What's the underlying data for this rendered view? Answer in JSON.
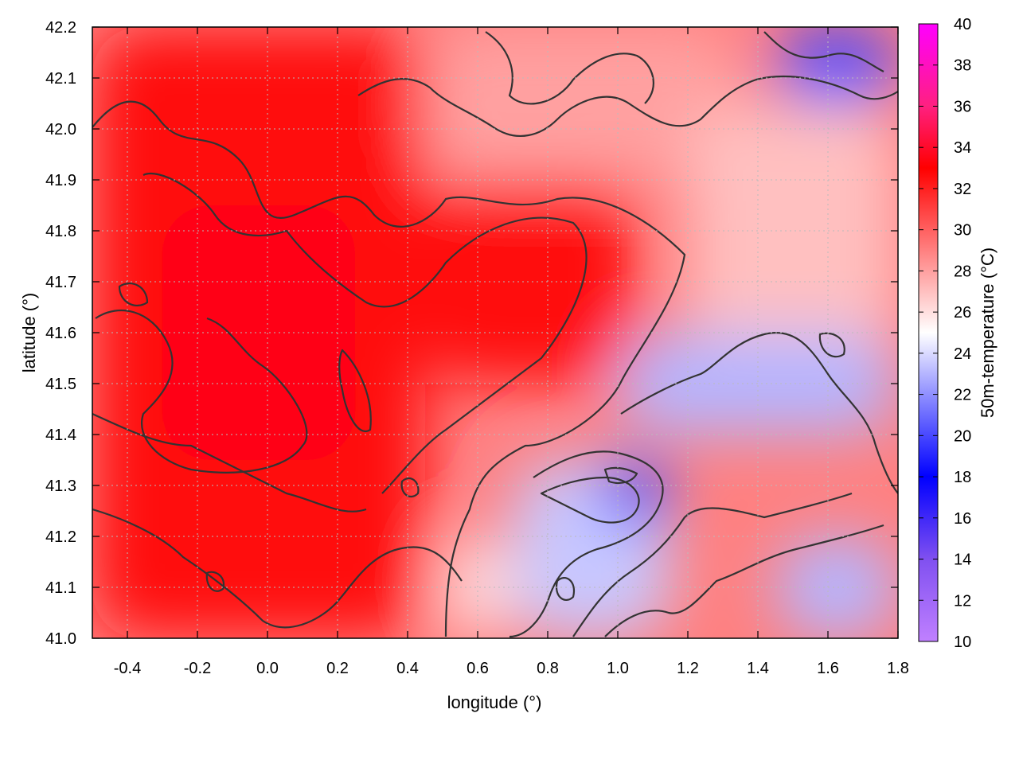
{
  "chart_data": {
    "type": "heatmap",
    "title": "",
    "xlabel": "longitude (°)",
    "ylabel": "latitude (°)",
    "colorbar_label": "50m-temperature (°C)",
    "xlim": [
      -0.5,
      1.8
    ],
    "ylim": [
      41.0,
      42.2
    ],
    "clim": [
      10,
      40
    ],
    "x_ticks": [
      -0.4,
      -0.2,
      0.0,
      0.2,
      0.4,
      0.6,
      0.8,
      1.0,
      1.2,
      1.4,
      1.6,
      1.8
    ],
    "x_tick_labels": [
      "-0.4",
      "-0.2",
      "0.0",
      "0.2",
      "0.4",
      "0.6",
      "0.8",
      "1.0",
      "1.2",
      "1.4",
      "1.6",
      "1.8"
    ],
    "y_ticks": [
      41.0,
      41.1,
      41.2,
      41.3,
      41.4,
      41.5,
      41.6,
      41.7,
      41.8,
      41.9,
      42.0,
      42.1,
      42.2
    ],
    "y_tick_labels": [
      "41.0",
      "41.1",
      "41.2",
      "41.3",
      "41.4",
      "41.5",
      "41.6",
      "41.7",
      "41.8",
      "41.9",
      "42.0",
      "42.1",
      "42.2"
    ],
    "colorbar_ticks": [
      10,
      12,
      14,
      16,
      18,
      20,
      22,
      24,
      26,
      28,
      30,
      32,
      34,
      36,
      38,
      40
    ],
    "colorbar_tick_labels": [
      "10",
      "12",
      "14",
      "16",
      "18",
      "20",
      "22",
      "24",
      "26",
      "28",
      "30",
      "32",
      "34",
      "36",
      "38",
      "40"
    ],
    "colorbar_stops": [
      {
        "value": 10,
        "color": "#c080ff"
      },
      {
        "value": 14,
        "color": "#8050f0"
      },
      {
        "value": 18,
        "color": "#0000ff"
      },
      {
        "value": 22,
        "color": "#9090ff"
      },
      {
        "value": 25,
        "color": "#ffffff"
      },
      {
        "value": 29,
        "color": "#ff8080"
      },
      {
        "value": 33,
        "color": "#ff0000"
      },
      {
        "value": 36,
        "color": "#ff2080"
      },
      {
        "value": 40,
        "color": "#ff00ff"
      }
    ],
    "grid": true,
    "contour_color": "#333333",
    "field_regions": [
      {
        "lon": -0.5,
        "lat": 41.0,
        "w": 0.95,
        "h": 1.2,
        "temp": 32.5
      },
      {
        "lon": -0.3,
        "lat": 41.35,
        "w": 0.55,
        "h": 0.5,
        "temp": 33.5
      },
      {
        "lon": 0.45,
        "lat": 41.5,
        "w": 0.6,
        "h": 0.4,
        "temp": 32.5
      },
      {
        "lon": 0.45,
        "lat": 41.9,
        "w": 0.9,
        "h": 0.3,
        "temp": 28.0
      },
      {
        "lon": 1.2,
        "lat": 41.55,
        "w": 0.6,
        "h": 0.5,
        "temp": 27.0
      },
      {
        "lon": 1.0,
        "lat": 41.4,
        "w": 0.8,
        "h": 0.2,
        "temp": 23.0
      },
      {
        "lon": 0.7,
        "lat": 41.0,
        "w": 0.45,
        "h": 0.35,
        "temp": 23.5
      },
      {
        "lon": 0.95,
        "lat": 41.22,
        "w": 0.2,
        "h": 0.13,
        "temp": 19.5
      },
      {
        "lon": 1.45,
        "lat": 41.0,
        "w": 0.35,
        "h": 0.2,
        "temp": 23.0
      },
      {
        "lon": 1.45,
        "lat": 42.05,
        "w": 0.35,
        "h": 0.15,
        "temp": 20.0
      },
      {
        "lon": 0.5,
        "lat": 41.0,
        "w": 0.2,
        "h": 0.2,
        "temp": 26.0
      }
    ]
  }
}
